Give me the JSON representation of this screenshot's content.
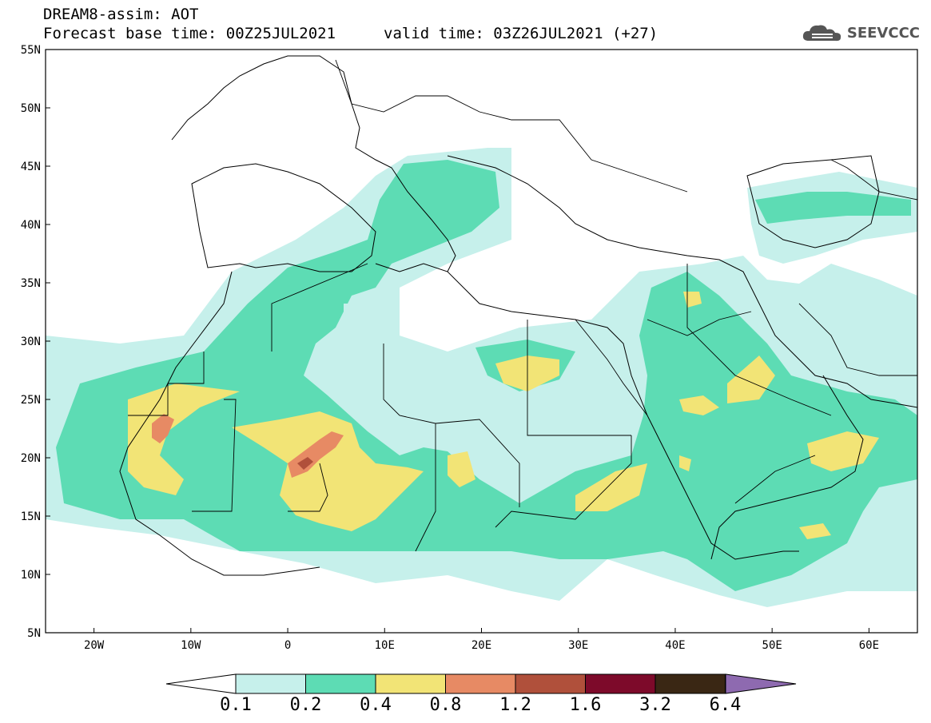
{
  "header": {
    "line1": "DREAM8-assim: AOT",
    "line2": "Forecast base time: 00Z25JUL2021",
    "line3": "valid time: 03Z26JUL2021 (+27)",
    "logo_text": "SEEVCCC"
  },
  "map": {
    "lat_labels": [
      "55N",
      "50N",
      "45N",
      "40N",
      "35N",
      "30N",
      "25N",
      "20N",
      "15N",
      "10N",
      "5N"
    ],
    "lon_labels": [
      "20W",
      "10W",
      "0",
      "10E",
      "20E",
      "30E",
      "40E",
      "50E",
      "60E"
    ],
    "lat_range": [
      5,
      55
    ],
    "lon_range": [
      -25,
      65
    ]
  },
  "colorbar": {
    "labels": [
      "0.1",
      "0.2",
      "0.4",
      "0.8",
      "1.2",
      "1.6",
      "3.2",
      "6.4"
    ],
    "colors": [
      "#c6f0eb",
      "#5ddcb4",
      "#f2e476",
      "#e78a64",
      "#b0503b",
      "#7d0a2a",
      "#3a2714",
      "#8e6ab0"
    ]
  }
}
